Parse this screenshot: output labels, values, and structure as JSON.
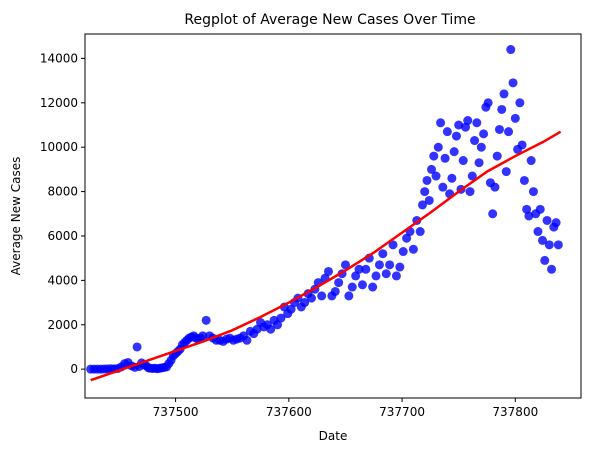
{
  "chart_data": {
    "type": "scatter",
    "title": "Regplot of Average New Cases Over Time",
    "xlabel": "Date",
    "ylabel": "Average New Cases",
    "xlim": [
      737420,
      737858
    ],
    "ylim": [
      -1300,
      15100
    ],
    "xticks": [
      737500,
      737600,
      737700,
      737800
    ],
    "xtick_labels": [
      "737500",
      "737600",
      "737700",
      "737800"
    ],
    "yticks": [
      0,
      2000,
      4000,
      6000,
      8000,
      10000,
      12000,
      14000
    ],
    "ytick_labels": [
      "0",
      "2000",
      "4000",
      "6000",
      "8000",
      "10000",
      "12000",
      "14000"
    ],
    "grid": false,
    "series": [
      {
        "kind": "scatter",
        "color": "#0000ff",
        "points": [
          [
            737425,
            0
          ],
          [
            737428,
            0
          ],
          [
            737431,
            0
          ],
          [
            737434,
            0
          ],
          [
            737437,
            5
          ],
          [
            737440,
            10
          ],
          [
            737443,
            20
          ],
          [
            737446,
            15
          ],
          [
            737449,
            30
          ],
          [
            737452,
            100
          ],
          [
            737455,
            250
          ],
          [
            737458,
            300
          ],
          [
            737461,
            150
          ],
          [
            737464,
            80
          ],
          [
            737466,
            1000
          ],
          [
            737468,
            120
          ],
          [
            737470,
            280
          ],
          [
            737472,
            200
          ],
          [
            737474,
            150
          ],
          [
            737476,
            60
          ],
          [
            737478,
            40
          ],
          [
            737480,
            30
          ],
          [
            737482,
            40
          ],
          [
            737484,
            20
          ],
          [
            737486,
            40
          ],
          [
            737488,
            60
          ],
          [
            737490,
            80
          ],
          [
            737492,
            100
          ],
          [
            737494,
            250
          ],
          [
            737496,
            400
          ],
          [
            737498,
            600
          ],
          [
            737500,
            700
          ],
          [
            737502,
            800
          ],
          [
            737504,
            900
          ],
          [
            737506,
            1100
          ],
          [
            737508,
            1200
          ],
          [
            737510,
            1300
          ],
          [
            737512,
            1400
          ],
          [
            737514,
            1450
          ],
          [
            737516,
            1500
          ],
          [
            737518,
            1400
          ],
          [
            737520,
            1350
          ],
          [
            737522,
            1400
          ],
          [
            737524,
            1500
          ],
          [
            737527,
            2200
          ],
          [
            737530,
            1500
          ],
          [
            737533,
            1400
          ],
          [
            737536,
            1300
          ],
          [
            737539,
            1300
          ],
          [
            737542,
            1250
          ],
          [
            737545,
            1350
          ],
          [
            737548,
            1400
          ],
          [
            737551,
            1300
          ],
          [
            737554,
            1350
          ],
          [
            737557,
            1400
          ],
          [
            737560,
            1500
          ],
          [
            737563,
            1300
          ],
          [
            737566,
            1700
          ],
          [
            737569,
            1600
          ],
          [
            737572,
            1800
          ],
          [
            737575,
            2100
          ],
          [
            737578,
            1900
          ],
          [
            737581,
            2000
          ],
          [
            737584,
            1800
          ],
          [
            737587,
            2200
          ],
          [
            737590,
            2000
          ],
          [
            737593,
            2300
          ],
          [
            737596,
            2800
          ],
          [
            737599,
            2500
          ],
          [
            737602,
            2700
          ],
          [
            737605,
            3000
          ],
          [
            737608,
            3200
          ],
          [
            737611,
            2800
          ],
          [
            737614,
            3000
          ],
          [
            737617,
            3400
          ],
          [
            737620,
            3200
          ],
          [
            737623,
            3600
          ],
          [
            737626,
            3900
          ],
          [
            737629,
            3300
          ],
          [
            737632,
            4100
          ],
          [
            737635,
            4400
          ],
          [
            737638,
            3300
          ],
          [
            737641,
            3500
          ],
          [
            737644,
            3900
          ],
          [
            737647,
            4300
          ],
          [
            737650,
            4700
          ],
          [
            737653,
            3300
          ],
          [
            737656,
            3700
          ],
          [
            737659,
            4200
          ],
          [
            737662,
            4500
          ],
          [
            737665,
            3800
          ],
          [
            737668,
            4500
          ],
          [
            737671,
            5000
          ],
          [
            737674,
            3700
          ],
          [
            737677,
            4200
          ],
          [
            737680,
            4700
          ],
          [
            737683,
            5200
          ],
          [
            737686,
            4300
          ],
          [
            737689,
            4700
          ],
          [
            737692,
            5600
          ],
          [
            737695,
            4200
          ],
          [
            737698,
            4600
          ],
          [
            737701,
            5300
          ],
          [
            737704,
            5900
          ],
          [
            737707,
            6200
          ],
          [
            737710,
            5400
          ],
          [
            737713,
            6700
          ],
          [
            737716,
            6200
          ],
          [
            737718,
            7400
          ],
          [
            737720,
            8000
          ],
          [
            737722,
            8500
          ],
          [
            737724,
            7600
          ],
          [
            737726,
            9000
          ],
          [
            737728,
            9600
          ],
          [
            737730,
            8700
          ],
          [
            737732,
            10000
          ],
          [
            737734,
            11100
          ],
          [
            737736,
            8200
          ],
          [
            737738,
            9500
          ],
          [
            737740,
            10700
          ],
          [
            737742,
            7900
          ],
          [
            737744,
            8600
          ],
          [
            737746,
            9800
          ],
          [
            737748,
            10500
          ],
          [
            737750,
            11000
          ],
          [
            737752,
            8100
          ],
          [
            737754,
            9400
          ],
          [
            737756,
            10900
          ],
          [
            737758,
            11200
          ],
          [
            737760,
            8000
          ],
          [
            737762,
            8700
          ],
          [
            737764,
            10300
          ],
          [
            737766,
            11100
          ],
          [
            737768,
            9300
          ],
          [
            737770,
            10000
          ],
          [
            737772,
            10600
          ],
          [
            737774,
            11800
          ],
          [
            737776,
            12000
          ],
          [
            737778,
            8400
          ],
          [
            737780,
            7000
          ],
          [
            737782,
            8200
          ],
          [
            737784,
            9600
          ],
          [
            737786,
            10800
          ],
          [
            737788,
            11700
          ],
          [
            737790,
            12400
          ],
          [
            737792,
            8900
          ],
          [
            737794,
            10700
          ],
          [
            737796,
            14400
          ],
          [
            737798,
            12900
          ],
          [
            737800,
            11300
          ],
          [
            737802,
            9900
          ],
          [
            737804,
            12000
          ],
          [
            737806,
            10100
          ],
          [
            737808,
            8500
          ],
          [
            737810,
            7200
          ],
          [
            737812,
            6900
          ],
          [
            737814,
            9400
          ],
          [
            737816,
            8000
          ],
          [
            737818,
            7000
          ],
          [
            737820,
            6200
          ],
          [
            737822,
            7200
          ],
          [
            737824,
            5800
          ],
          [
            737826,
            4900
          ],
          [
            737828,
            6700
          ],
          [
            737830,
            5600
          ],
          [
            737832,
            4500
          ],
          [
            737834,
            6400
          ],
          [
            737836,
            6600
          ],
          [
            737838,
            5600
          ]
        ]
      },
      {
        "kind": "line",
        "color": "#ff0000",
        "x": [
          737425,
          737450,
          737475,
          737500,
          737525,
          737550,
          737575,
          737600,
          737625,
          737650,
          737675,
          737700,
          737725,
          737750,
          737775,
          737800,
          737825,
          737840
        ],
        "y": [
          -500,
          -60,
          380,
          820,
          1260,
          1750,
          2350,
          3000,
          3700,
          4450,
          5250,
          6150,
          7050,
          8000,
          8900,
          9600,
          10250,
          10700
        ]
      }
    ]
  }
}
